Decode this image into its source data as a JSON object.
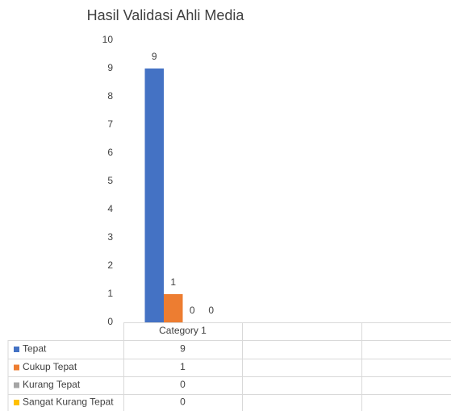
{
  "chart_data": {
    "type": "bar",
    "title": "Hasil Validasi Ahli Media",
    "categories": [
      "Category 1"
    ],
    "series": [
      {
        "name": "Tepat",
        "color": "#4472c4",
        "values": [
          9
        ]
      },
      {
        "name": "Cukup Tepat",
        "color": "#ed7d31",
        "values": [
          1
        ]
      },
      {
        "name": "Kurang Tepat",
        "color": "#a5a5a5",
        "values": [
          0
        ]
      },
      {
        "name": "Sangat Kurang Tepat",
        "color": "#ffc000",
        "values": [
          0
        ]
      }
    ],
    "ylim": [
      0,
      10
    ],
    "yticks": [
      0,
      1,
      2,
      3,
      4,
      5,
      6,
      7,
      8,
      9,
      10
    ],
    "grid": false,
    "data_labels": true,
    "data_table": true
  }
}
